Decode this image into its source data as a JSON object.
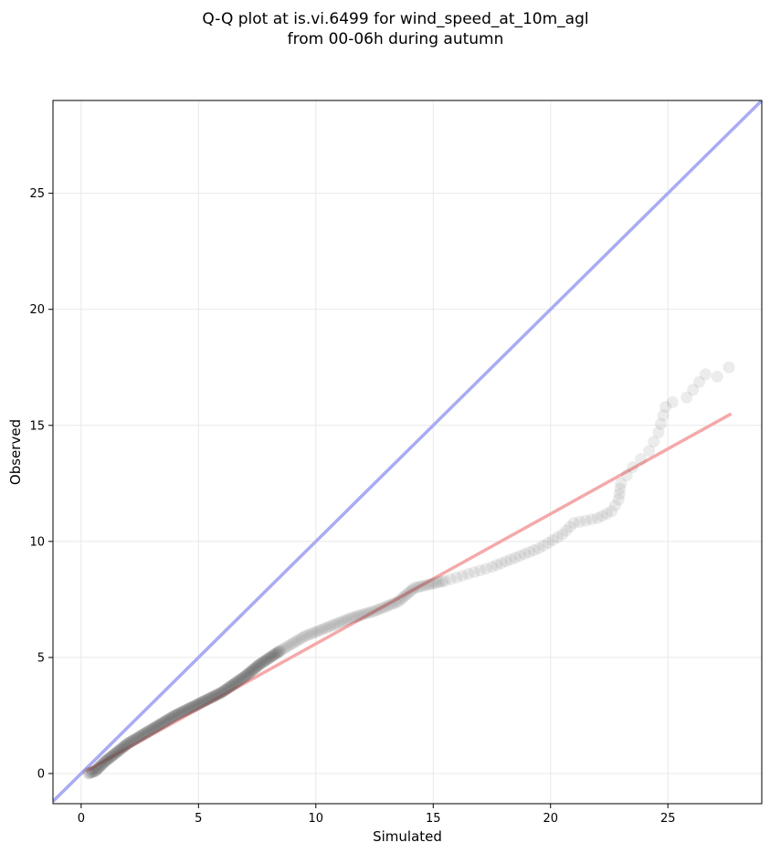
{
  "chart_data": {
    "type": "scatter",
    "title_lines": [
      "Q-Q plot at is.vi.6499 for wind_speed_at_10m_agl",
      "from 00-06h during autumn"
    ],
    "xlabel": "Simulated",
    "ylabel": "Observed",
    "xlim": [
      -1.2,
      29.0
    ],
    "ylim": [
      -1.3,
      29.0
    ],
    "x_ticks": [
      0,
      5,
      10,
      15,
      20,
      25
    ],
    "y_ticks": [
      0,
      5,
      10,
      15,
      20,
      25
    ],
    "grid": true,
    "legend": "none",
    "colors": {
      "points": "#404040",
      "identity_line": "#a9abf4",
      "fit_line": "#f4a9aa",
      "grid": "#e8e8e8",
      "axes": "#000000"
    },
    "identity_line": {
      "from": [
        -1.2,
        -1.2
      ],
      "to": [
        29.0,
        29.0
      ]
    },
    "fit_line": {
      "from": [
        0.2,
        0.1
      ],
      "to": [
        27.7,
        15.5
      ]
    },
    "quantile_curve": [
      [
        0.3,
        0.0
      ],
      [
        0.6,
        0.1
      ],
      [
        1.0,
        0.5
      ],
      [
        1.5,
        0.9
      ],
      [
        2.0,
        1.3
      ],
      [
        2.5,
        1.6
      ],
      [
        3.0,
        1.9
      ],
      [
        4.0,
        2.5
      ],
      [
        5.0,
        3.0
      ],
      [
        6.0,
        3.5
      ],
      [
        7.0,
        4.2
      ],
      [
        7.6,
        4.7
      ],
      [
        8.5,
        5.3
      ],
      [
        9.5,
        5.9
      ],
      [
        10.5,
        6.3
      ],
      [
        11.5,
        6.7
      ],
      [
        12.5,
        7.0
      ],
      [
        13.5,
        7.4
      ],
      [
        14.2,
        8.0
      ],
      [
        15.5,
        8.3
      ],
      [
        16.5,
        8.6
      ],
      [
        17.5,
        8.9
      ],
      [
        18.5,
        9.3
      ],
      [
        19.5,
        9.7
      ],
      [
        20.5,
        10.3
      ],
      [
        21.0,
        10.8
      ],
      [
        22.0,
        11.0
      ],
      [
        22.6,
        11.3
      ],
      [
        22.9,
        11.8
      ],
      [
        23.0,
        12.5
      ],
      [
        23.5,
        13.2
      ],
      [
        24.2,
        13.9
      ],
      [
        24.6,
        14.7
      ],
      [
        24.9,
        15.8
      ],
      [
        25.2,
        16.0
      ],
      [
        25.8,
        16.2
      ],
      [
        26.6,
        17.2
      ],
      [
        27.1,
        17.1
      ],
      [
        27.6,
        17.5
      ]
    ]
  }
}
